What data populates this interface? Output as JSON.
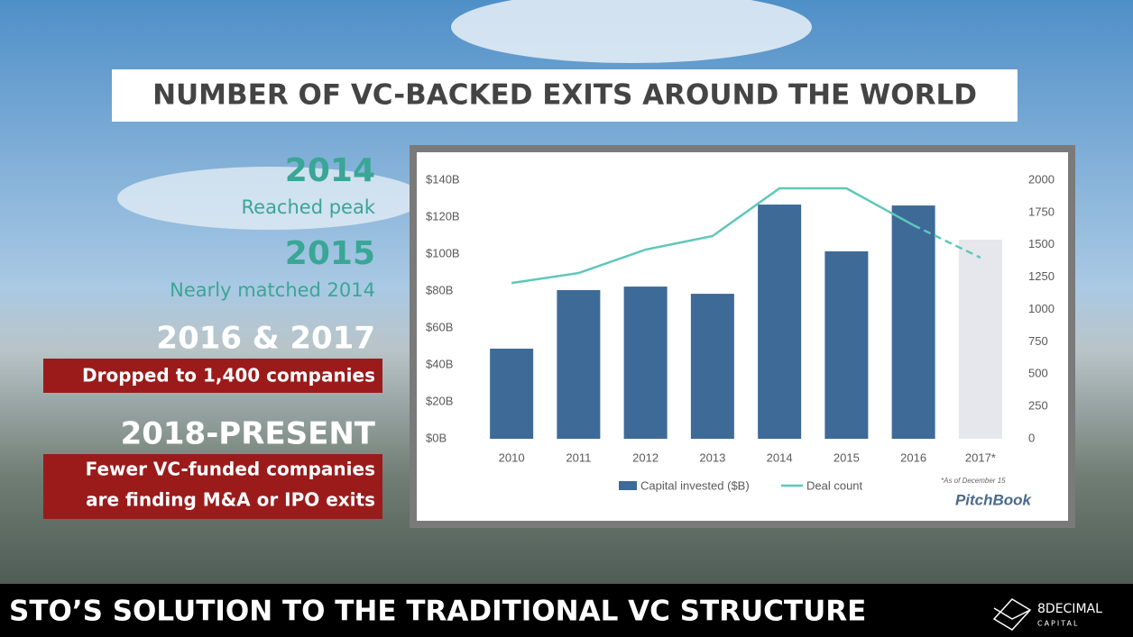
{
  "slide": {
    "title": "NUMBER OF VC-BACKED EXITS AROUND THE WORLD",
    "highlights": [
      {
        "heading": "2014",
        "text": [
          "Reached peak"
        ]
      },
      {
        "heading": "2015",
        "text": [
          "Nearly matched 2014"
        ]
      },
      {
        "heading": "2016 & 2017",
        "text": [
          "Dropped to 1,400 companies"
        ]
      },
      {
        "heading": "2018-PRESENT",
        "text": [
          "Fewer VC-funded companies",
          "are finding M&A or IPO exits"
        ]
      }
    ],
    "banner": "STO’S SOLUTION TO THE TRADITIONAL VC STRUCTURE",
    "logo": {
      "name": "8DECIMAL",
      "sub": "CAPITAL"
    }
  },
  "chart_data": {
    "type": "combo",
    "categories": [
      "2010",
      "2011",
      "2012",
      "2013",
      "2014",
      "2015",
      "2016",
      "2017*"
    ],
    "series": [
      {
        "name": "Capital invested ($B)",
        "type": "bar",
        "color": "#3e6a98",
        "colors": [
          "#3e6a98",
          "#3e6a98",
          "#3e6a98",
          "#3e6a98",
          "#3e6a98",
          "#3e6a98",
          "#3e6a98",
          "#e6e7ec"
        ],
        "values": [
          48.8,
          80.5,
          82.4,
          78.5,
          126.8,
          101.5,
          126.3,
          107.8
        ]
      },
      {
        "name": "Deal count",
        "type": "line",
        "axis": "y2",
        "color": "#5ec8b8",
        "dashed_last_segment": true,
        "values": [
          1205,
          1282,
          1463,
          1568,
          1937,
          1937,
          1652,
          1401
        ]
      }
    ],
    "ylim": [
      0,
      140
    ],
    "yticks": [
      {
        "value": 0,
        "label": "$0B"
      },
      {
        "value": 20,
        "label": "$20B"
      },
      {
        "value": 40,
        "label": "$40B"
      },
      {
        "value": 60,
        "label": "$60B"
      },
      {
        "value": 80,
        "label": "$80B"
      },
      {
        "value": 100,
        "label": "$100B"
      },
      {
        "value": 120,
        "label": "$120B"
      },
      {
        "value": 140,
        "label": "$140B"
      }
    ],
    "y2lim": [
      0,
      2000
    ],
    "y2ticks": [
      0,
      250,
      500,
      750,
      1000,
      1250,
      1500,
      1750,
      2000
    ],
    "footnote": "*As of December 15",
    "source": "PitchBook"
  }
}
